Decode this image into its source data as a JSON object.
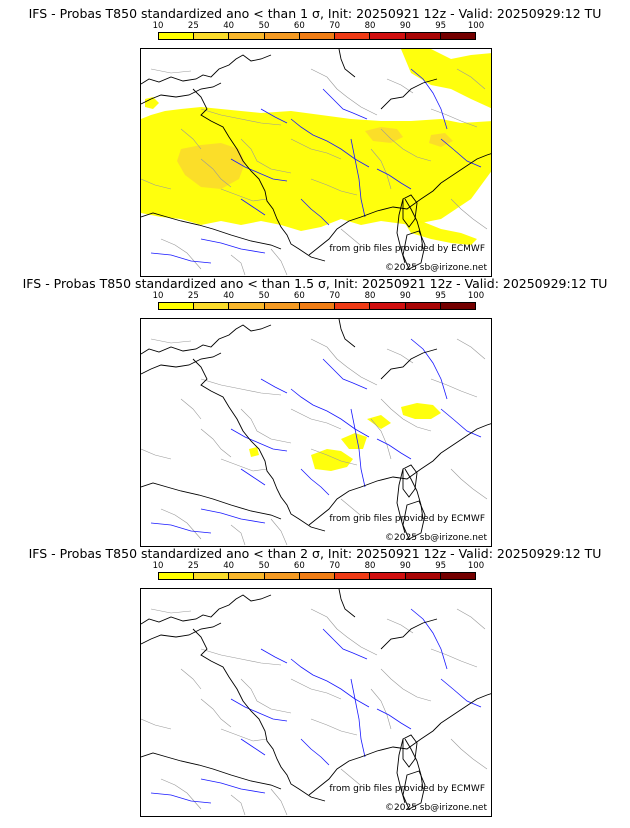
{
  "panels": [
    {
      "title": "IFS - Probas T850  standardized ano < than 1 σ, Init: 20250921 12z - Valid: 20250929:12 TU",
      "coverage": "large"
    },
    {
      "title": "IFS - Probas T850  standardized ano < than 1.5 σ, Init: 20250921 12z - Valid: 20250929:12 TU",
      "coverage": "small"
    },
    {
      "title": "IFS - Probas T850  standardized ano < than 2 σ, Init: 20250921 12z - Valid: 20250929:12 TU",
      "coverage": "none"
    }
  ],
  "colorbar": {
    "ticks": [
      "10",
      "25",
      "40",
      "50",
      "60",
      "70",
      "80",
      "90",
      "95",
      "100"
    ],
    "colors": [
      "#ffff00",
      "#fbdc2b",
      "#f8b62b",
      "#f49a23",
      "#f07d15",
      "#ee3b16",
      "#d00f0f",
      "#a80505",
      "#740000"
    ]
  },
  "credits": {
    "source": "from grib files provided by ECMWF",
    "copyright": "©2025 sb@irizone.net"
  },
  "colors": {
    "coast": "#000000",
    "rivers": "#1a1aff",
    "borders": "#9a9a9a",
    "prob_low": "#ffff00",
    "prob_mid": "#fbdc2b"
  }
}
